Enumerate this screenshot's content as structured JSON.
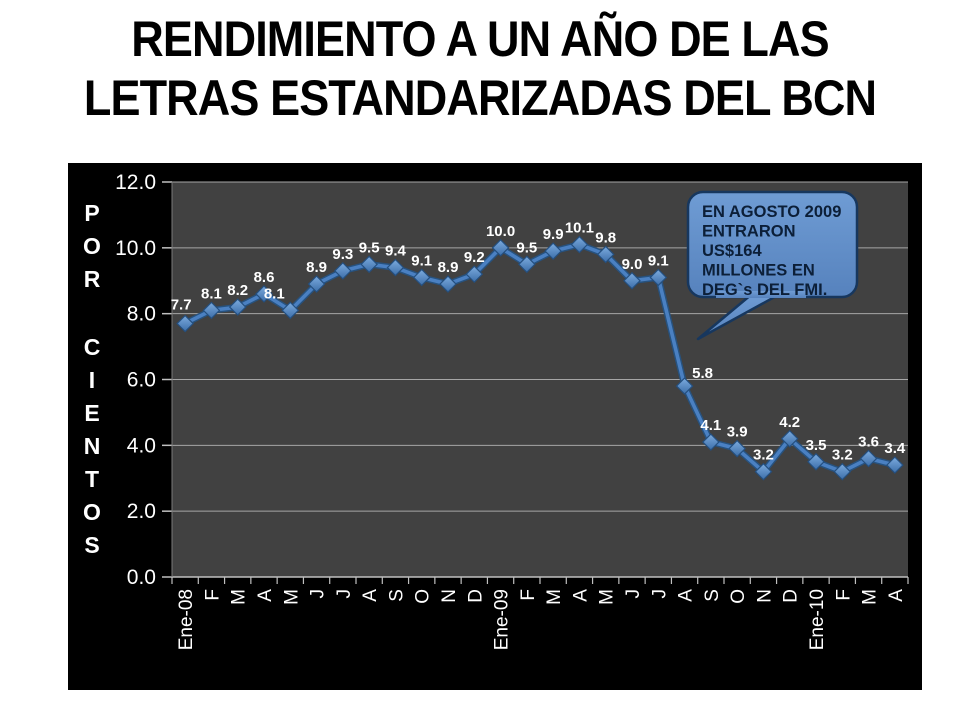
{
  "slide_title": {
    "line1": "RENDIMIENTO A UN AÑO DE LAS",
    "line2": "LETRAS ESTANDARIZADAS DEL BCN"
  },
  "chart_data": {
    "type": "line",
    "title": "",
    "xlabel": "",
    "ylabel": "POR CIENTOS",
    "ylim": [
      0.0,
      12.0
    ],
    "ytick_interval": 2.0,
    "ytick_labels": [
      "12.0",
      "10.0",
      "8.0",
      "6.0",
      "4.0",
      "2.0",
      "0.0"
    ],
    "grid": "horizontal-only",
    "legend": "none",
    "categories": [
      "Ene-08",
      "F",
      "M",
      "A",
      "M",
      "J",
      "J",
      "A",
      "S",
      "O",
      "N",
      "D",
      "Ene-09",
      "F",
      "M",
      "A",
      "M",
      "J",
      "J",
      "A",
      "S",
      "O",
      "N",
      "D",
      "Ene-10",
      "F",
      "M",
      "A"
    ],
    "values": [
      7.7,
      8.1,
      8.2,
      8.6,
      8.1,
      8.9,
      9.3,
      9.5,
      9.4,
      9.1,
      8.9,
      9.2,
      10.0,
      9.5,
      9.9,
      10.1,
      9.8,
      9.0,
      9.1,
      5.8,
      4.1,
      3.9,
      3.2,
      4.2,
      3.5,
      3.2,
      3.6,
      3.4
    ],
    "label_offsets": {
      "0": [
        -4,
        -2
      ],
      "4": [
        -16,
        0
      ],
      "19": [
        18,
        4
      ]
    },
    "marker": "diamond",
    "colors": {
      "chart_background": "#000000",
      "plot_background": "#414141",
      "gridline": "#a6a6a6",
      "axis_line": "#c0c0c0",
      "line_main": "#4a80c2",
      "line_shadow": "#27527f",
      "marker_light": "#7cabde",
      "marker_dark": "#3c6ea9",
      "marker_stroke": "#244f7f",
      "text": "#ffffff"
    },
    "annotation": {
      "lines": [
        "EN AGOSTO 2009",
        "ENTRARON",
        "US$164",
        "MILLONES EN",
        "DEG`s DEL FMI."
      ],
      "fill_top": "#6f9cd4",
      "fill_bottom": "#5682bd",
      "border": "#17375e",
      "text_color": "#0c1f38"
    }
  }
}
